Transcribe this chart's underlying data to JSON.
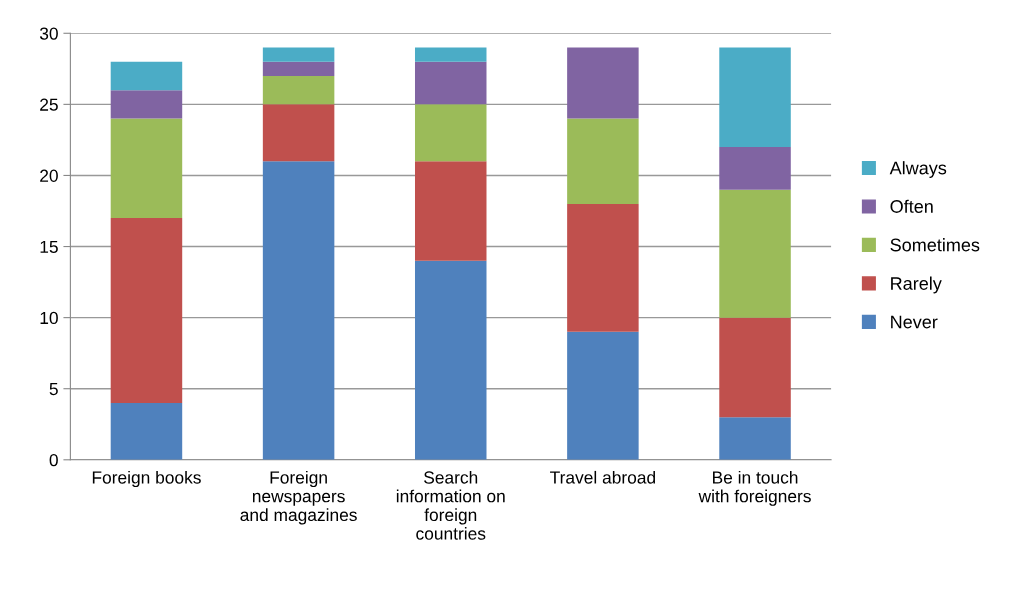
{
  "chart_data": {
    "type": "bar",
    "stacked": true,
    "categories": [
      "Foreign books",
      "Foreign\nnewspapers\nand magazines",
      "Search\ninformation on\nforeign\ncountries",
      "Travel abroad",
      "Be in touch\nwith foreigners"
    ],
    "series": [
      {
        "name": "Never",
        "color": "#4f81bd",
        "values": [
          4,
          21,
          14,
          9,
          3
        ]
      },
      {
        "name": "Rarely",
        "color": "#c0504d",
        "values": [
          13,
          4,
          7,
          9,
          7
        ]
      },
      {
        "name": "Sometimes",
        "color": "#9bbb59",
        "values": [
          7,
          2,
          4,
          6,
          9
        ]
      },
      {
        "name": "Often",
        "color": "#8064a2",
        "values": [
          2,
          1,
          3,
          5,
          3
        ]
      },
      {
        "name": "Always",
        "color": "#4bacc6",
        "values": [
          2,
          1,
          1,
          0,
          7
        ]
      }
    ],
    "ylim": [
      0,
      30
    ],
    "yticks": [
      0,
      5,
      10,
      15,
      20,
      25,
      30
    ],
    "grid": "y",
    "legend": "right"
  }
}
